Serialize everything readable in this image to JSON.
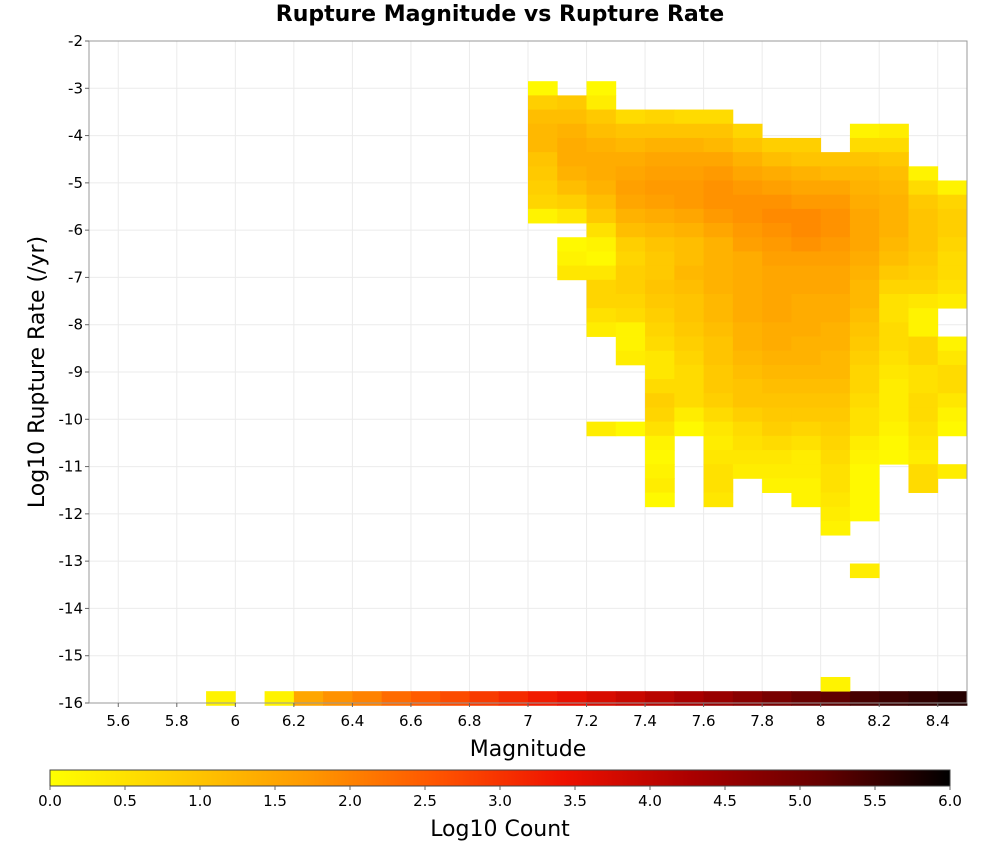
{
  "chart_data": {
    "type": "heatmap",
    "title": "Rupture Magnitude vs Rupture Rate",
    "xlabel": "Magnitude",
    "ylabel": "Log10 Rupture Rate (/yr)",
    "xlim": [
      5.5,
      8.5
    ],
    "ylim": [
      -16,
      -2
    ],
    "x_ticks": [
      "5.6",
      "5.8",
      "6",
      "6.2",
      "6.4",
      "6.6",
      "6.8",
      "7",
      "7.2",
      "7.4",
      "7.6",
      "7.8",
      "8",
      "8.2",
      "8.4"
    ],
    "y_ticks": [
      "-16",
      "-15",
      "-14",
      "-13",
      "-12",
      "-11",
      "-10",
      "-9",
      "-8",
      "-7",
      "-6",
      "-5",
      "-4",
      "-3",
      "-2"
    ],
    "x_bin_start": 5.5,
    "x_bin_width": 0.1,
    "y_bin_width": 0.3,
    "grid": true,
    "colorbar": {
      "label": "Log10 Count",
      "min": 0.0,
      "max": 6.0,
      "ticks": [
        "0.0",
        "0.5",
        "1.0",
        "1.5",
        "2.0",
        "2.5",
        "3.0",
        "3.5",
        "4.0",
        "4.5",
        "5.0",
        "5.5",
        "6.0"
      ],
      "colors": [
        "#ffff00",
        "#ffcc00",
        "#ff9900",
        "#ff5500",
        "#ee1100",
        "#aa0000",
        "#660000",
        "#000000"
      ]
    },
    "bottom_row": {
      "y": -15.9,
      "values": [
        null,
        null,
        null,
        null,
        0.2,
        null,
        0.2,
        1.5,
        1.8,
        2.0,
        2.3,
        2.5,
        2.7,
        2.9,
        3.1,
        3.3,
        3.5,
        3.7,
        3.9,
        4.1,
        4.3,
        4.5,
        4.7,
        4.9,
        5.1,
        5.2,
        5.4,
        5.5,
        5.6,
        5.7
      ]
    },
    "extra_cells": [
      {
        "x": 8.05,
        "y": -15.6,
        "value": 0.2
      }
    ],
    "columns": [
      {
        "x": 7.05,
        "y_start": -3.0,
        "values": [
          0.1,
          0.8,
          1.1,
          1.2,
          1.2,
          1.0,
          0.9,
          0.8,
          0.7,
          0.2
        ]
      },
      {
        "x": 7.15,
        "y_start": -3.3,
        "values": [
          0.9,
          1.1,
          1.3,
          1.4,
          1.4,
          1.3,
          1.1,
          0.8,
          0.4,
          null,
          0.1,
          0.2,
          0.4
        ]
      },
      {
        "x": 7.25,
        "y_start": -3.0,
        "values": [
          0.1,
          0.3,
          0.9,
          1.1,
          1.3,
          1.4,
          1.4,
          1.3,
          1.1,
          0.9,
          0.5,
          0.2,
          0.1,
          0.4,
          0.7,
          0.7,
          0.5,
          0.3,
          null,
          null,
          null,
          null,
          null,
          null,
          0.3
        ]
      },
      {
        "x": 7.35,
        "y_start": -3.6,
        "values": [
          0.6,
          1.0,
          1.2,
          1.4,
          1.5,
          1.6,
          1.5,
          1.3,
          1.1,
          0.8,
          0.7,
          0.8,
          0.8,
          0.7,
          0.6,
          0.2,
          0.2,
          0.3,
          null,
          null,
          null,
          null,
          0.1
        ]
      },
      {
        "x": 7.45,
        "y_start": -3.6,
        "values": [
          0.7,
          1.0,
          1.3,
          1.5,
          1.6,
          1.7,
          1.6,
          1.4,
          1.2,
          1.0,
          0.9,
          0.9,
          1.0,
          0.9,
          0.8,
          0.7,
          0.6,
          0.4,
          0.4,
          0.6,
          0.8,
          0.7,
          0.5,
          0.2,
          0.1,
          0.2,
          0.3,
          0.1
        ]
      },
      {
        "x": 7.55,
        "y_start": -3.6,
        "values": [
          0.6,
          1.0,
          1.3,
          1.5,
          1.6,
          1.7,
          1.7,
          1.5,
          1.3,
          1.1,
          1.1,
          1.2,
          1.1,
          1.0,
          1.0,
          0.9,
          0.8,
          0.7,
          0.6,
          0.6,
          0.6,
          0.3,
          0.1
        ]
      },
      {
        "x": 7.65,
        "y_start": -3.6,
        "values": [
          0.6,
          1.0,
          1.2,
          1.5,
          1.7,
          1.8,
          1.8,
          1.7,
          1.5,
          1.3,
          1.3,
          1.3,
          1.3,
          1.2,
          1.2,
          1.1,
          1.0,
          1.0,
          0.9,
          0.9,
          0.8,
          0.6,
          0.4,
          0.3,
          0.4,
          0.5,
          0.5,
          0.4
        ]
      },
      {
        "x": 7.75,
        "y_start": -3.9,
        "values": [
          0.7,
          1.0,
          1.3,
          1.5,
          1.7,
          1.8,
          1.8,
          1.7,
          1.6,
          1.4,
          1.4,
          1.4,
          1.4,
          1.4,
          1.3,
          1.3,
          1.2,
          1.1,
          1.0,
          1.0,
          0.8,
          0.6,
          0.5,
          0.4,
          0.3
        ]
      },
      {
        "x": 7.85,
        "y_start": -4.2,
        "values": [
          0.8,
          1.1,
          1.4,
          1.6,
          1.8,
          1.9,
          1.8,
          1.7,
          1.6,
          1.5,
          1.5,
          1.5,
          1.5,
          1.4,
          1.4,
          1.3,
          1.2,
          1.1,
          1.0,
          0.9,
          0.8,
          0.6,
          0.4,
          0.3,
          0.2
        ]
      },
      {
        "x": 7.95,
        "y_start": -4.2,
        "values": [
          0.8,
          1.0,
          1.3,
          1.5,
          1.7,
          1.9,
          1.9,
          1.8,
          1.6,
          1.5,
          1.5,
          1.4,
          1.4,
          1.4,
          1.3,
          1.3,
          1.2,
          1.1,
          1.0,
          0.9,
          0.7,
          0.5,
          0.3,
          0.3,
          0.2,
          0.2
        ]
      },
      {
        "x": 8.05,
        "y_start": -4.5,
        "values": [
          1.0,
          1.2,
          1.5,
          1.7,
          1.8,
          1.8,
          1.7,
          1.6,
          1.5,
          1.5,
          1.4,
          1.4,
          1.3,
          1.3,
          1.2,
          1.2,
          1.1,
          1.0,
          0.9,
          0.8,
          0.7,
          0.6,
          0.5,
          0.5,
          0.4,
          0.3,
          0.2
        ]
      },
      {
        "x": 8.15,
        "y_start": -3.9,
        "values": [
          0.2,
          0.6,
          1.0,
          1.2,
          1.3,
          1.4,
          1.5,
          1.5,
          1.5,
          1.4,
          1.3,
          1.2,
          1.2,
          1.1,
          1.0,
          0.9,
          0.8,
          0.7,
          0.7,
          0.6,
          0.5,
          0.5,
          0.3,
          0.2,
          0.1,
          0.1,
          0.1,
          0.1,
          null,
          null,
          null,
          0.3
        ]
      },
      {
        "x": 8.25,
        "y_start": -3.9,
        "values": [
          0.3,
          0.6,
          0.9,
          1.1,
          1.2,
          1.3,
          1.3,
          1.3,
          1.2,
          1.1,
          0.9,
          0.7,
          0.5,
          0.5,
          0.6,
          0.6,
          0.5,
          0.4,
          0.3,
          0.3,
          0.3,
          0.2,
          0.1,
          0.1
        ]
      },
      {
        "x": 8.35,
        "y_start": -4.8,
        "values": [
          0.2,
          0.6,
          0.9,
          1.0,
          1.0,
          1.0,
          0.9,
          0.8,
          0.7,
          0.4,
          0.2,
          0.2,
          0.7,
          0.7,
          0.5,
          0.5,
          0.6,
          0.6,
          0.5,
          0.4,
          0.3,
          0.6,
          0.6
        ]
      },
      {
        "x": 8.45,
        "y_start": -5.1,
        "values": [
          0.2,
          0.7,
          0.8,
          0.8,
          0.7,
          0.6,
          0.6,
          0.5,
          0.3,
          null,
          null,
          0.2,
          0.4,
          0.6,
          0.6,
          0.4,
          0.2,
          0.1,
          null,
          null,
          0.3
        ]
      }
    ]
  }
}
